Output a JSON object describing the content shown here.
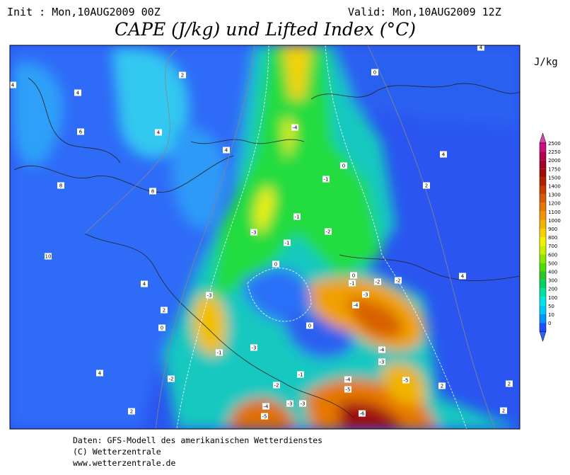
{
  "header": {
    "init": "Init : Mon,10AUG2009 00Z",
    "valid": "Valid: Mon,10AUG2009 12Z",
    "title": "CAPE (J/kg) und Lifted Index (°C)"
  },
  "legend": {
    "unit": "J/kg",
    "items": [
      {
        "label": "2500",
        "color": "#c8107e"
      },
      {
        "label": "2250",
        "color": "#b40050"
      },
      {
        "label": "2000",
        "color": "#a00028"
      },
      {
        "label": "1750",
        "color": "#a00a0a"
      },
      {
        "label": "1500",
        "color": "#b41e00"
      },
      {
        "label": "1400",
        "color": "#c83c00"
      },
      {
        "label": "1300",
        "color": "#d85a00"
      },
      {
        "label": "1200",
        "color": "#e67800"
      },
      {
        "label": "1100",
        "color": "#f09600"
      },
      {
        "label": "1000",
        "color": "#f0b400"
      },
      {
        "label": "900",
        "color": "#f5d200"
      },
      {
        "label": "800",
        "color": "#f5f000"
      },
      {
        "label": "700",
        "color": "#c8f000"
      },
      {
        "label": "600",
        "color": "#8ce600"
      },
      {
        "label": "500",
        "color": "#50dc00"
      },
      {
        "label": "400",
        "color": "#28c828"
      },
      {
        "label": "300",
        "color": "#00d264"
      },
      {
        "label": "200",
        "color": "#00e1a0"
      },
      {
        "label": "100",
        "color": "#00e6e6"
      },
      {
        "label": "50",
        "color": "#00c8ff"
      },
      {
        "label": "10",
        "color": "#0096ff"
      },
      {
        "label": "0",
        "color": "#1e50ff"
      }
    ]
  },
  "map": {
    "contour_labels": [
      "2",
      "4",
      "6",
      "4",
      "8",
      "8",
      "10",
      "4",
      "2",
      "0",
      "4",
      "2",
      "4",
      "4",
      "-4",
      "0",
      "-1",
      "-3",
      "-1",
      "-2",
      "-1",
      "0",
      "-3",
      "-1",
      "-3",
      "-2",
      "0",
      "-1",
      "-2",
      "-2",
      "-3",
      "-4",
      "0",
      "-4",
      "-3",
      "-1",
      "-2",
      "-4",
      "-5",
      "-5",
      "-3",
      "-3",
      "-4",
      "-5",
      "-6",
      "4",
      "4",
      "2",
      "4",
      "0",
      "2",
      "2",
      "2"
    ]
  },
  "footer": {
    "lines": [
      "Daten: GFS-Modell des amerikanischen Wetterdienstes",
      "(C) Wetterzentrale",
      "www.wetterzentrale.de"
    ]
  }
}
